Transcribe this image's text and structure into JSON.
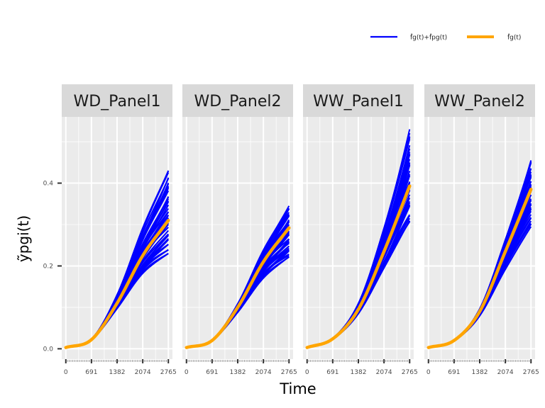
{
  "chart_data": {
    "type": "line",
    "layout": "faceted",
    "panels": [
      "WD_Panel1",
      "WD_Panel2",
      "WW_Panel1",
      "WW_Panel2"
    ],
    "xlabel": "Time",
    "ylabel": "ỹpgi(t)",
    "x_ticks": [
      0,
      691,
      1382,
      2074,
      2765
    ],
    "x_tick_labels": [
      "0",
      "691",
      "1382",
      "2074",
      "2765"
    ],
    "y_ticks": [
      0.0,
      0.2,
      0.4
    ],
    "y_tick_labels": [
      "0.0",
      "0.2",
      "0.4"
    ],
    "xlim": [
      -110,
      2875
    ],
    "ylim": [
      -0.025,
      0.56
    ],
    "grid": true,
    "legend": {
      "position": "top-right",
      "entries": [
        {
          "label": "f̂g(t)+f̂pg(t)",
          "color": "#0000ff"
        },
        {
          "label": "f̂g(t)",
          "color": "#ffa500"
        }
      ]
    },
    "colors": {
      "individual": "#0000ff",
      "mean": "#ffa500"
    },
    "x_values": [
      0,
      691,
      1382,
      2074,
      2765
    ],
    "series": [
      {
        "panel": "WD_Panel1",
        "kind": "mean",
        "values": [
          0.003,
          0.022,
          0.11,
          0.225,
          0.31
        ]
      },
      {
        "panel": "WD_Panel1",
        "kind": "individual",
        "count": 40,
        "end_range": [
          0.23,
          0.43
        ]
      },
      {
        "panel": "WD_Panel2",
        "kind": "mean",
        "values": [
          0.003,
          0.02,
          0.1,
          0.21,
          0.292
        ]
      },
      {
        "panel": "WD_Panel2",
        "kind": "individual",
        "count": 40,
        "end_range": [
          0.22,
          0.345
        ]
      },
      {
        "panel": "WW_Panel1",
        "kind": "mean",
        "values": [
          0.003,
          0.024,
          0.095,
          0.235,
          0.393
        ]
      },
      {
        "panel": "WW_Panel1",
        "kind": "individual",
        "count": 40,
        "end_range": [
          0.3,
          0.53
        ]
      },
      {
        "panel": "WW_Panel2",
        "kind": "mean",
        "values": [
          0.003,
          0.02,
          0.09,
          0.235,
          0.385
        ]
      },
      {
        "panel": "WW_Panel2",
        "kind": "individual",
        "count": 40,
        "end_range": [
          0.295,
          0.455
        ]
      }
    ]
  }
}
